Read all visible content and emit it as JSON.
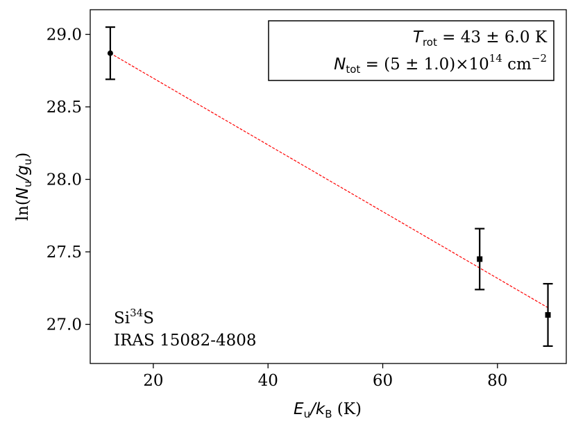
{
  "chart_data": {
    "type": "scatter",
    "title": "",
    "xlabel": {
      "var": "E",
      "var_sub": "u",
      "sep": "/",
      "var2": "k",
      "var2_sub": "B",
      "unit": " (K)"
    },
    "ylabel": {
      "prefix": "ln(",
      "var": "N",
      "var_sub": "u",
      "sep": "/",
      "var2": "g",
      "var2_sub": "u",
      "suffix": ")"
    },
    "xlim": [
      9,
      92
    ],
    "ylim": [
      26.73,
      29.17
    ],
    "xticks": [
      20,
      40,
      60,
      80
    ],
    "yticks": [
      27.0,
      27.5,
      28.0,
      28.5,
      29.0
    ],
    "xtick_labels": [
      "20",
      "40",
      "60",
      "80"
    ],
    "ytick_labels": [
      "27.0",
      "27.5",
      "28.0",
      "28.5",
      "29.0"
    ],
    "points": [
      {
        "x": 12.5,
        "y": 28.87,
        "err": 0.18,
        "marker": "circle"
      },
      {
        "x": 76.9,
        "y": 27.45,
        "err": 0.21,
        "marker": "square"
      },
      {
        "x": 88.8,
        "y": 27.065,
        "err": 0.215,
        "marker": "square"
      }
    ],
    "fit_line": {
      "x": [
        12.5,
        88.8
      ],
      "y": [
        28.87,
        27.115
      ],
      "style": "dashed",
      "color": "#ff0000"
    },
    "legend_box": {
      "placement": "top-right",
      "line1": {
        "var": "T",
        "sub": "rot",
        "text": " = 43 ± 6.0 K"
      },
      "line2": {
        "var": "N",
        "sub": "tot",
        "text": " = (5 ± 1.0)×10",
        "exp": "14",
        "unit": " cm",
        "unit_exp": "−2"
      }
    },
    "annotations": {
      "placement": "bottom-left",
      "molecule_base": "Si",
      "molecule_sup": "34",
      "molecule_end": "S",
      "source": "IRAS 15082-4808"
    },
    "grid": false,
    "colors": {
      "points": "#000000",
      "fit": "#ff0000",
      "axes": "#000000"
    }
  }
}
